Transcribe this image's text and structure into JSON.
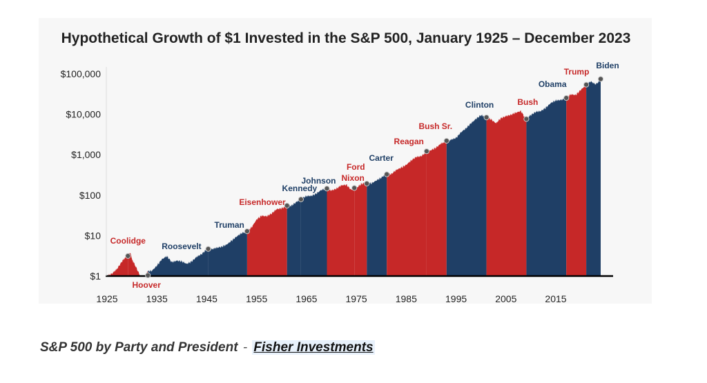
{
  "caption": {
    "text": "S&P 500 by Party and President",
    "separator": "-",
    "link_text": "Fisher Investments"
  },
  "colors": {
    "republican": "#c62828",
    "democrat": "#1f3f66",
    "marker": "#555555",
    "axis": "#000000"
  },
  "chart_data": {
    "type": "area",
    "title": "Hypothetical Growth of $1 Invested in the S&P 500, January 1925 – December 2023",
    "xlabel": "",
    "ylabel": "",
    "y_scale": "log",
    "ylim": [
      1,
      100000
    ],
    "xlim": [
      1925,
      2024
    ],
    "y_ticks": [
      {
        "value": 1,
        "label": "$1"
      },
      {
        "value": 10,
        "label": "$10"
      },
      {
        "value": 100,
        "label": "$100"
      },
      {
        "value": 1000,
        "label": "$1,000"
      },
      {
        "value": 10000,
        "label": "$10,000"
      },
      {
        "value": 100000,
        "label": "$100,000"
      }
    ],
    "x_ticks": [
      1925,
      1935,
      1945,
      1955,
      1965,
      1975,
      1985,
      1995,
      2005,
      2015
    ],
    "grid": false,
    "growth": [
      [
        1925,
        1.0
      ],
      [
        1926,
        1.15
      ],
      [
        1927,
        1.5
      ],
      [
        1928,
        2.3
      ],
      [
        1929,
        3.2
      ],
      [
        1929.7,
        3.8
      ],
      [
        1930,
        2.6
      ],
      [
        1931,
        1.5
      ],
      [
        1932,
        0.8
      ],
      [
        1932.5,
        0.7
      ],
      [
        1933,
        1.3
      ],
      [
        1934,
        1.35
      ],
      [
        1935,
        1.8
      ],
      [
        1936,
        2.6
      ],
      [
        1937,
        3.1
      ],
      [
        1938,
        2.2
      ],
      [
        1939,
        2.4
      ],
      [
        1940,
        2.3
      ],
      [
        1941,
        2.0
      ],
      [
        1942,
        2.3
      ],
      [
        1943,
        3.0
      ],
      [
        1944,
        3.5
      ],
      [
        1945,
        4.6
      ],
      [
        1946,
        4.6
      ],
      [
        1947,
        5.0
      ],
      [
        1948,
        5.3
      ],
      [
        1949,
        6.0
      ],
      [
        1950,
        7.5
      ],
      [
        1951,
        9.5
      ],
      [
        1952,
        11.5
      ],
      [
        1953,
        12.5
      ],
      [
        1954,
        16
      ],
      [
        1955,
        25
      ],
      [
        1956,
        31
      ],
      [
        1957,
        30
      ],
      [
        1958,
        35
      ],
      [
        1959,
        45
      ],
      [
        1960,
        47
      ],
      [
        1961,
        54
      ],
      [
        1962,
        55
      ],
      [
        1963,
        68
      ],
      [
        1964,
        82
      ],
      [
        1965,
        95
      ],
      [
        1966,
        96
      ],
      [
        1967,
        110
      ],
      [
        1968,
        135
      ],
      [
        1969,
        145
      ],
      [
        1970,
        130
      ],
      [
        1971,
        145
      ],
      [
        1972,
        175
      ],
      [
        1973,
        180
      ],
      [
        1974,
        135
      ],
      [
        1975,
        150
      ],
      [
        1976,
        190
      ],
      [
        1977,
        200
      ],
      [
        1978,
        195
      ],
      [
        1979,
        230
      ],
      [
        1980,
        270
      ],
      [
        1981,
        340
      ],
      [
        1982,
        330
      ],
      [
        1983,
        420
      ],
      [
        1984,
        480
      ],
      [
        1985,
        560
      ],
      [
        1986,
        720
      ],
      [
        1987,
        880
      ],
      [
        1988,
        920
      ],
      [
        1989,
        1150
      ],
      [
        1990,
        1300
      ],
      [
        1991,
        1500
      ],
      [
        1992,
        1900
      ],
      [
        1993,
        2100
      ],
      [
        1994,
        2350
      ],
      [
        1995,
        2600
      ],
      [
        1996,
        3600
      ],
      [
        1997,
        4500
      ],
      [
        1998,
        6000
      ],
      [
        1999,
        7700
      ],
      [
        2000,
        9500
      ],
      [
        2001,
        8500
      ],
      [
        2002,
        7500
      ],
      [
        2003,
        6000
      ],
      [
        2004,
        8000
      ],
      [
        2005,
        9000
      ],
      [
        2006,
        9700
      ],
      [
        2007,
        11000
      ],
      [
        2008,
        12000
      ],
      [
        2009,
        7600
      ],
      [
        2010,
        9600
      ],
      [
        2011,
        11500
      ],
      [
        2012,
        12000
      ],
      [
        2013,
        14500
      ],
      [
        2014,
        19000
      ],
      [
        2015,
        22000
      ],
      [
        2016,
        22500
      ],
      [
        2017,
        25000
      ],
      [
        2018,
        31000
      ],
      [
        2019,
        30000
      ],
      [
        2020,
        40000
      ],
      [
        2021,
        52000
      ],
      [
        2022,
        65000
      ],
      [
        2023,
        55000
      ],
      [
        2024,
        70000
      ]
    ],
    "presidents": [
      {
        "name": "Coolidge",
        "party": "R",
        "start": 1925.0,
        "end": 1929.2,
        "marker": 1929.2
      },
      {
        "name": "Hoover",
        "party": "R",
        "start": 1929.2,
        "end": 1933.2,
        "marker": 1933.2
      },
      {
        "name": "Roosevelt",
        "party": "D",
        "start": 1933.2,
        "end": 1945.3,
        "marker": 1945.3
      },
      {
        "name": "Truman",
        "party": "D",
        "start": 1945.3,
        "end": 1953.1,
        "marker": 1953.1
      },
      {
        "name": "Eisenhower",
        "party": "R",
        "start": 1953.1,
        "end": 1961.1,
        "marker": 1961.1
      },
      {
        "name": "Kennedy",
        "party": "D",
        "start": 1961.1,
        "end": 1963.9,
        "marker": 1963.9
      },
      {
        "name": "Johnson",
        "party": "D",
        "start": 1963.9,
        "end": 1969.1,
        "marker": 1969.1
      },
      {
        "name": "Nixon",
        "party": "R",
        "start": 1969.1,
        "end": 1974.6,
        "marker": 1974.6
      },
      {
        "name": "Ford",
        "party": "R",
        "start": 1974.6,
        "end": 1977.1,
        "marker": 1977.1
      },
      {
        "name": "Carter",
        "party": "D",
        "start": 1977.1,
        "end": 1981.1,
        "marker": 1981.1
      },
      {
        "name": "Reagan",
        "party": "R",
        "start": 1981.1,
        "end": 1989.1,
        "marker": 1989.1
      },
      {
        "name": "Bush Sr.",
        "party": "R",
        "start": 1989.1,
        "end": 1993.1,
        "marker": 1993.1
      },
      {
        "name": "Clinton",
        "party": "D",
        "start": 1993.1,
        "end": 2001.1,
        "marker": 2001.1
      },
      {
        "name": "Bush",
        "party": "R",
        "start": 2001.1,
        "end": 2009.1,
        "marker": 2009.1
      },
      {
        "name": "Obama",
        "party": "D",
        "start": 2009.1,
        "end": 2017.1,
        "marker": 2017.1
      },
      {
        "name": "Trump",
        "party": "R",
        "start": 2017.1,
        "end": 2021.1,
        "marker": 2021.1
      },
      {
        "name": "Biden",
        "party": "D",
        "start": 2021.1,
        "end": 2024.0,
        "marker": 2024.0
      }
    ]
  }
}
